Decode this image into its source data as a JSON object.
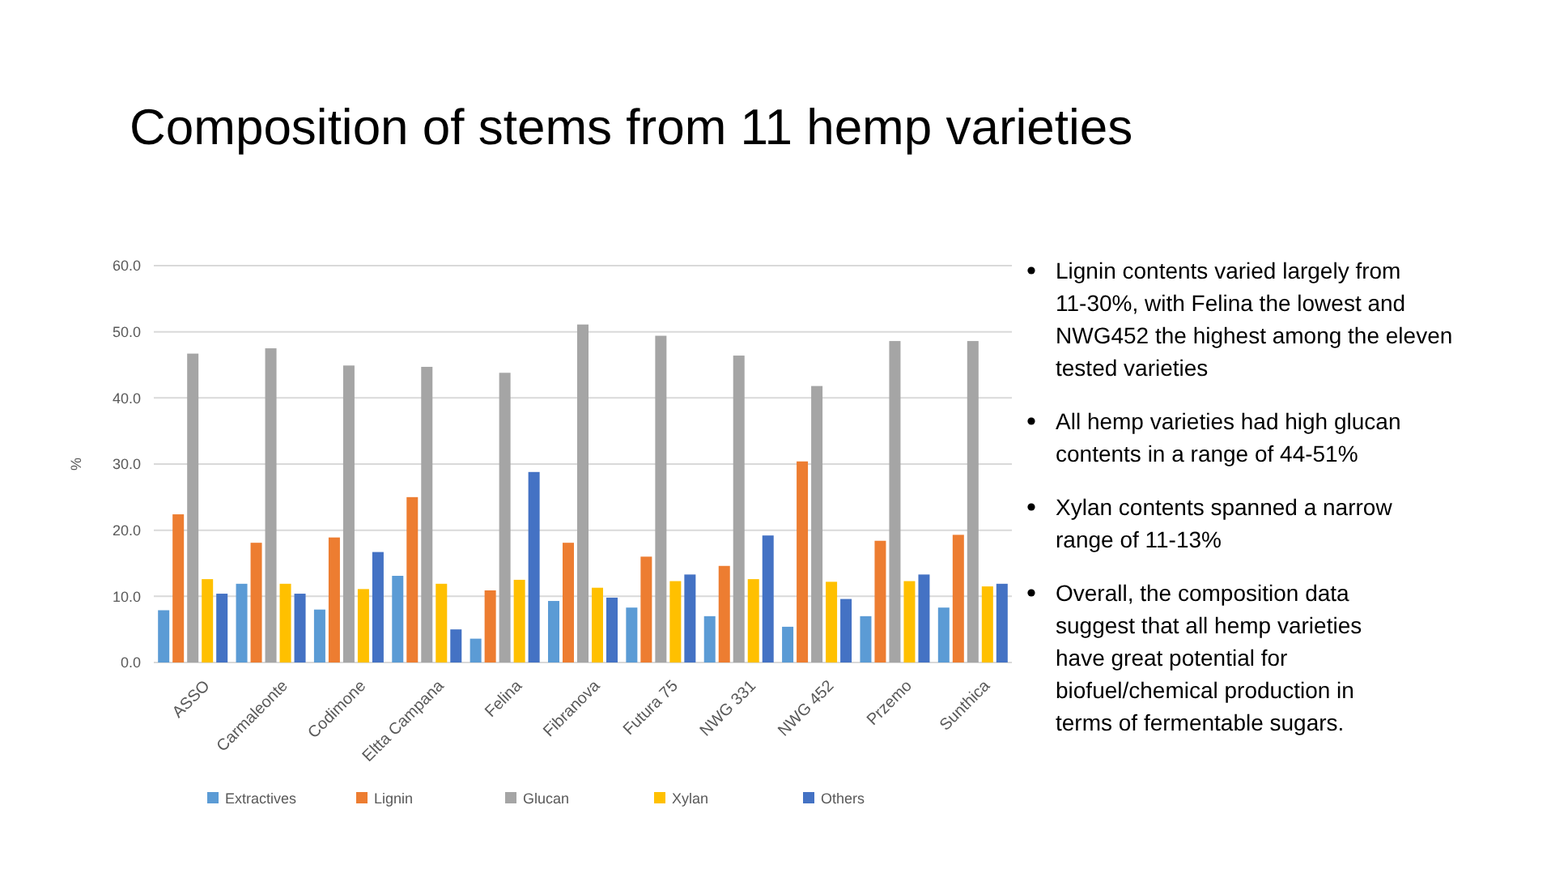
{
  "chart_data": {
    "type": "bar",
    "title": "Composition of stems from 11 hemp varieties",
    "ylabel": "%",
    "categories": [
      "ASSO",
      "Carmaleonte",
      "Codimone",
      "Eltta Campana",
      "Felina",
      "Fibranova",
      "Futura 75",
      "NWG 331",
      "NWG 452",
      "Przemo",
      "Sunthica"
    ],
    "series": [
      {
        "name": "Extractives",
        "color": "#5b9bd5",
        "values": [
          7.9,
          11.9,
          8.0,
          13.1,
          3.6,
          9.3,
          8.3,
          7.0,
          5.4,
          7.0,
          8.3
        ]
      },
      {
        "name": "Lignin",
        "color": "#ed7d31",
        "values": [
          22.4,
          18.1,
          18.9,
          25.0,
          10.9,
          18.1,
          16.0,
          14.6,
          30.4,
          18.4,
          19.3
        ]
      },
      {
        "name": "Glucan",
        "color": "#a5a5a5",
        "values": [
          46.7,
          47.5,
          44.9,
          44.7,
          43.8,
          51.1,
          49.4,
          46.4,
          41.8,
          48.6,
          48.6
        ]
      },
      {
        "name": "Xylan",
        "color": "#ffc000",
        "values": [
          12.6,
          11.9,
          11.1,
          11.9,
          12.5,
          11.3,
          12.3,
          12.6,
          12.2,
          12.3,
          11.5
        ]
      },
      {
        "name": "Others",
        "color": "#4472c4",
        "values": [
          10.4,
          10.4,
          16.7,
          5.0,
          28.8,
          9.8,
          13.3,
          19.2,
          9.6,
          13.3,
          11.9
        ]
      }
    ],
    "ylim": [
      0,
      60
    ],
    "yticks": [
      {
        "value": 0,
        "label": "0.0"
      },
      {
        "value": 10,
        "label": "10.0"
      },
      {
        "value": 20,
        "label": "20.0"
      },
      {
        "value": 30,
        "label": "30.0"
      },
      {
        "value": 40,
        "label": "40.0"
      },
      {
        "value": 50,
        "label": "50.0"
      },
      {
        "value": 60,
        "label": "60.0"
      }
    ],
    "grid": "y",
    "legend": "bottom",
    "annotations": [
      "Lignin contents varied largely from 11-30%, with Felina the lowest and NWG452 the highest among the eleven tested varieties",
      "All hemp varieties had high glucan contents in a range of 44-51%",
      "Xylan contents spanned a narrow range of 11-13%",
      "Overall, the composition data suggest that all hemp varieties have great potential for biofuel/chemical production in terms of fermentable sugars."
    ]
  }
}
